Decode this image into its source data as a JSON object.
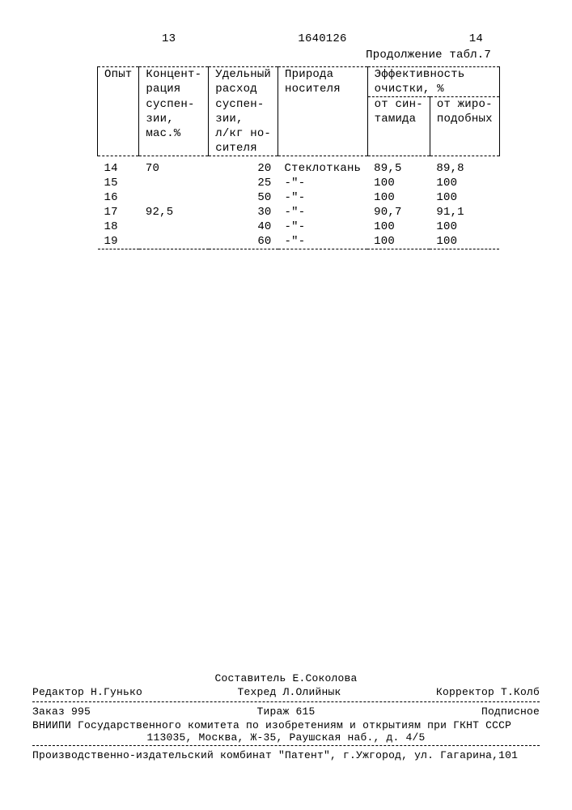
{
  "header": {
    "left_page": "13",
    "doc_number": "1640126",
    "right_page": "14",
    "continuation": "Продолжение табл.7"
  },
  "table": {
    "columns": {
      "c1": "Опыт",
      "c2_l1": "Концент-",
      "c2_l2": "рация",
      "c2_l3": "суспен-",
      "c2_l4": "зии,",
      "c2_l5": "мас.%",
      "c3_l1": "Удельный",
      "c3_l2": "расход",
      "c3_l3": "суспен-",
      "c3_l4": "зии,",
      "c3_l5": "л/кг но-",
      "c3_l6": "сителя",
      "c4_l1": "Природа",
      "c4_l2": "носителя",
      "c5_l1": "Эффективность",
      "c5_l2": "очистки, %",
      "c5a_l1": "от син-",
      "c5a_l2": "тамида",
      "c5b_l1": "от жиро-",
      "c5b_l2": "подобных"
    },
    "rows": [
      {
        "opyt": "14",
        "conc": "70",
        "rate": "20",
        "carrier": "Стеклоткань",
        "eff_sin": "89,5",
        "eff_fat": "89,8"
      },
      {
        "opyt": "15",
        "conc": "",
        "rate": "25",
        "carrier": "-\"-",
        "eff_sin": "100",
        "eff_fat": "100"
      },
      {
        "opyt": "16",
        "conc": "",
        "rate": "50",
        "carrier": "-\"-",
        "eff_sin": "100",
        "eff_fat": "100"
      },
      {
        "opyt": "17",
        "conc": "92,5",
        "rate": "30",
        "carrier": "-\"-",
        "eff_sin": "90,7",
        "eff_fat": "91,1"
      },
      {
        "opyt": "18",
        "conc": "",
        "rate": "40",
        "carrier": "-\"-",
        "eff_sin": "100",
        "eff_fat": "100"
      },
      {
        "opyt": "19",
        "conc": "",
        "rate": "60",
        "carrier": "-\"-",
        "eff_sin": "100",
        "eff_fat": "100"
      }
    ]
  },
  "footer": {
    "compiler": "Составитель Е.Соколова",
    "editor": "Редактор Н.Гунько",
    "techred": "Техред Л.Олийнык",
    "corrector": "Корректор Т.Колб",
    "order": "Заказ 995",
    "tirazh": "Тираж 615",
    "signed": "Подписное",
    "org_l1": "ВНИИПИ Государственного комитета по изобретениям и открытиям при ГКНТ СССР",
    "org_l2": "113035, Москва, Ж-35, Раушская наб., д. 4/5",
    "prod": "Производственно-издательский комбинат \"Патент\", г.Ужгород, ул. Гагарина,101"
  }
}
